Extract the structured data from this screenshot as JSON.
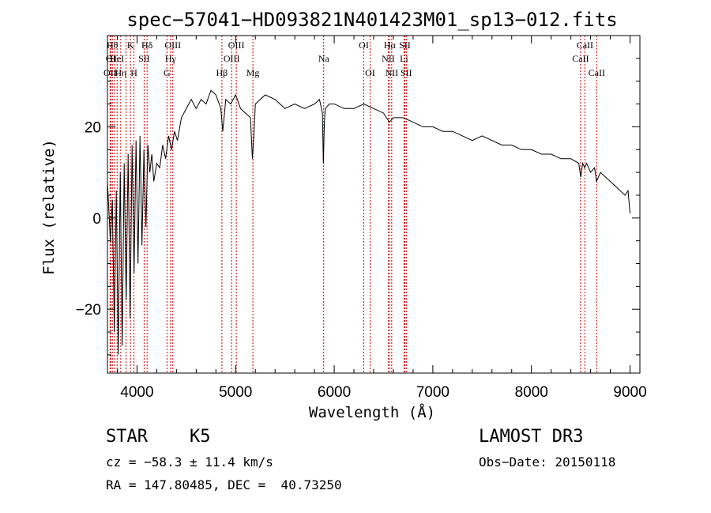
{
  "chart_data": {
    "type": "line",
    "title": "spec−57041−HD093821N401423M01_sp13−012.fits",
    "xlabel": "Wavelength (Å)",
    "ylabel": "Flux (relative)",
    "xlim": [
      3700,
      9100
    ],
    "ylim": [
      -34,
      40
    ],
    "xticks": [
      4000,
      5000,
      6000,
      7000,
      8000,
      9000
    ],
    "xtick_labels": [
      "4000",
      "5000",
      "6000",
      "7000",
      "8000",
      "9000"
    ],
    "yticks": [
      -20,
      0,
      20
    ],
    "ytick_labels": [
      "−20",
      "0",
      "20"
    ],
    "series": [
      {
        "name": "flux",
        "x": [
          3700,
          3730,
          3750,
          3770,
          3790,
          3810,
          3830,
          3850,
          3870,
          3890,
          3910,
          3930,
          3950,
          3970,
          3990,
          4010,
          4030,
          4050,
          4070,
          4090,
          4110,
          4130,
          4150,
          4170,
          4200,
          4230,
          4260,
          4290,
          4320,
          4350,
          4380,
          4410,
          4450,
          4500,
          4550,
          4600,
          4650,
          4700,
          4750,
          4800,
          4850,
          4870,
          4900,
          4950,
          5000,
          5050,
          5100,
          5150,
          5170,
          5185,
          5200,
          5250,
          5300,
          5400,
          5500,
          5600,
          5700,
          5800,
          5850,
          5880,
          5890,
          5900,
          5910,
          5950,
          6000,
          6100,
          6200,
          6300,
          6400,
          6500,
          6560,
          6600,
          6700,
          6800,
          6900,
          7000,
          7100,
          7200,
          7300,
          7400,
          7500,
          7600,
          7700,
          7800,
          7900,
          8000,
          8100,
          8200,
          8300,
          8400,
          8480,
          8500,
          8520,
          8540,
          8560,
          8600,
          8640,
          8660,
          8700,
          8750,
          8800,
          8850,
          8900,
          8950,
          8980,
          9000
        ],
        "y": [
          8,
          -5,
          4,
          -25,
          6,
          -30,
          10,
          -28,
          12,
          -18,
          14,
          -22,
          16,
          -12,
          17,
          -10,
          18,
          -6,
          15,
          -2,
          16,
          10,
          14,
          8,
          12,
          11,
          16,
          13,
          18,
          15,
          19,
          17,
          22,
          24,
          26,
          24,
          26,
          25,
          28,
          27,
          24,
          19,
          26,
          25,
          27,
          24,
          23,
          22,
          13,
          18,
          25,
          26,
          27,
          26,
          24,
          25,
          24,
          25,
          26,
          23,
          12,
          21,
          24,
          25,
          25,
          24,
          24,
          25,
          24,
          23,
          21,
          22,
          22,
          21,
          20,
          20,
          19,
          19,
          18,
          17,
          18,
          17,
          16,
          16,
          15,
          15,
          14,
          14,
          13,
          13,
          12,
          9,
          12,
          11,
          12,
          10,
          11,
          8,
          10,
          9,
          8,
          7,
          6,
          5,
          6,
          1
        ]
      }
    ],
    "line_markers": [
      {
        "wl": 3727,
        "row": 2,
        "label": "OII"
      },
      {
        "wl": 3734,
        "row": 1,
        "label": "OI"
      },
      {
        "wl": 3750,
        "row": 0,
        "label": "Hθ"
      },
      {
        "wl": 3770,
        "row": 0,
        "label": ""
      },
      {
        "wl": 3798,
        "row": 1,
        "label": "HeI"
      },
      {
        "wl": 3835,
        "row": 2,
        "label": "Hη"
      },
      {
        "wl": 3889,
        "row": 1,
        "label": ""
      },
      {
        "wl": 3934,
        "row": 0,
        "label": "K"
      },
      {
        "wl": 3969,
        "row": 2,
        "label": "H"
      },
      {
        "wl": 4072,
        "row": 1,
        "label": "SII"
      },
      {
        "wl": 4102,
        "row": 0,
        "label": "Hδ"
      },
      {
        "wl": 4304,
        "row": 2,
        "label": "G"
      },
      {
        "wl": 4340,
        "row": 1,
        "label": "Hγ"
      },
      {
        "wl": 4363,
        "row": 0,
        "label": "OIII"
      },
      {
        "wl": 4861,
        "row": 2,
        "label": "Hβ"
      },
      {
        "wl": 4959,
        "row": 1,
        "label": "OIII"
      },
      {
        "wl": 5007,
        "row": 0,
        "label": "OIII"
      },
      {
        "wl": 5175,
        "row": 2,
        "label": "Mg"
      },
      {
        "wl": 5893,
        "row": 1,
        "label": "Na"
      },
      {
        "wl": 6300,
        "row": 0,
        "label": "OI"
      },
      {
        "wl": 6364,
        "row": 2,
        "label": "OI"
      },
      {
        "wl": 6548,
        "row": 1,
        "label": "NII"
      },
      {
        "wl": 6563,
        "row": 0,
        "label": "Hα"
      },
      {
        "wl": 6583,
        "row": 2,
        "label": "NII"
      },
      {
        "wl": 6708,
        "row": 1,
        "label": "Li"
      },
      {
        "wl": 6716,
        "row": 0,
        "label": "SII"
      },
      {
        "wl": 6731,
        "row": 2,
        "label": "SII"
      },
      {
        "wl": 8498,
        "row": 1,
        "label": "CaII"
      },
      {
        "wl": 8542,
        "row": 0,
        "label": "CaII"
      },
      {
        "wl": 8662,
        "row": 2,
        "label": "CaII"
      }
    ]
  },
  "info": {
    "object_class": "STAR    K5",
    "survey": "LAMOST DR3",
    "cz": "cz = −58.3 ± 11.4 km/s",
    "obs_date": "Obs−Date: 20150118",
    "radec": "RA = 147.80485, DEC =  40.73250"
  },
  "colors": {
    "spectrum": "#000000",
    "marker": "#cc0000",
    "axes": "#000000"
  }
}
